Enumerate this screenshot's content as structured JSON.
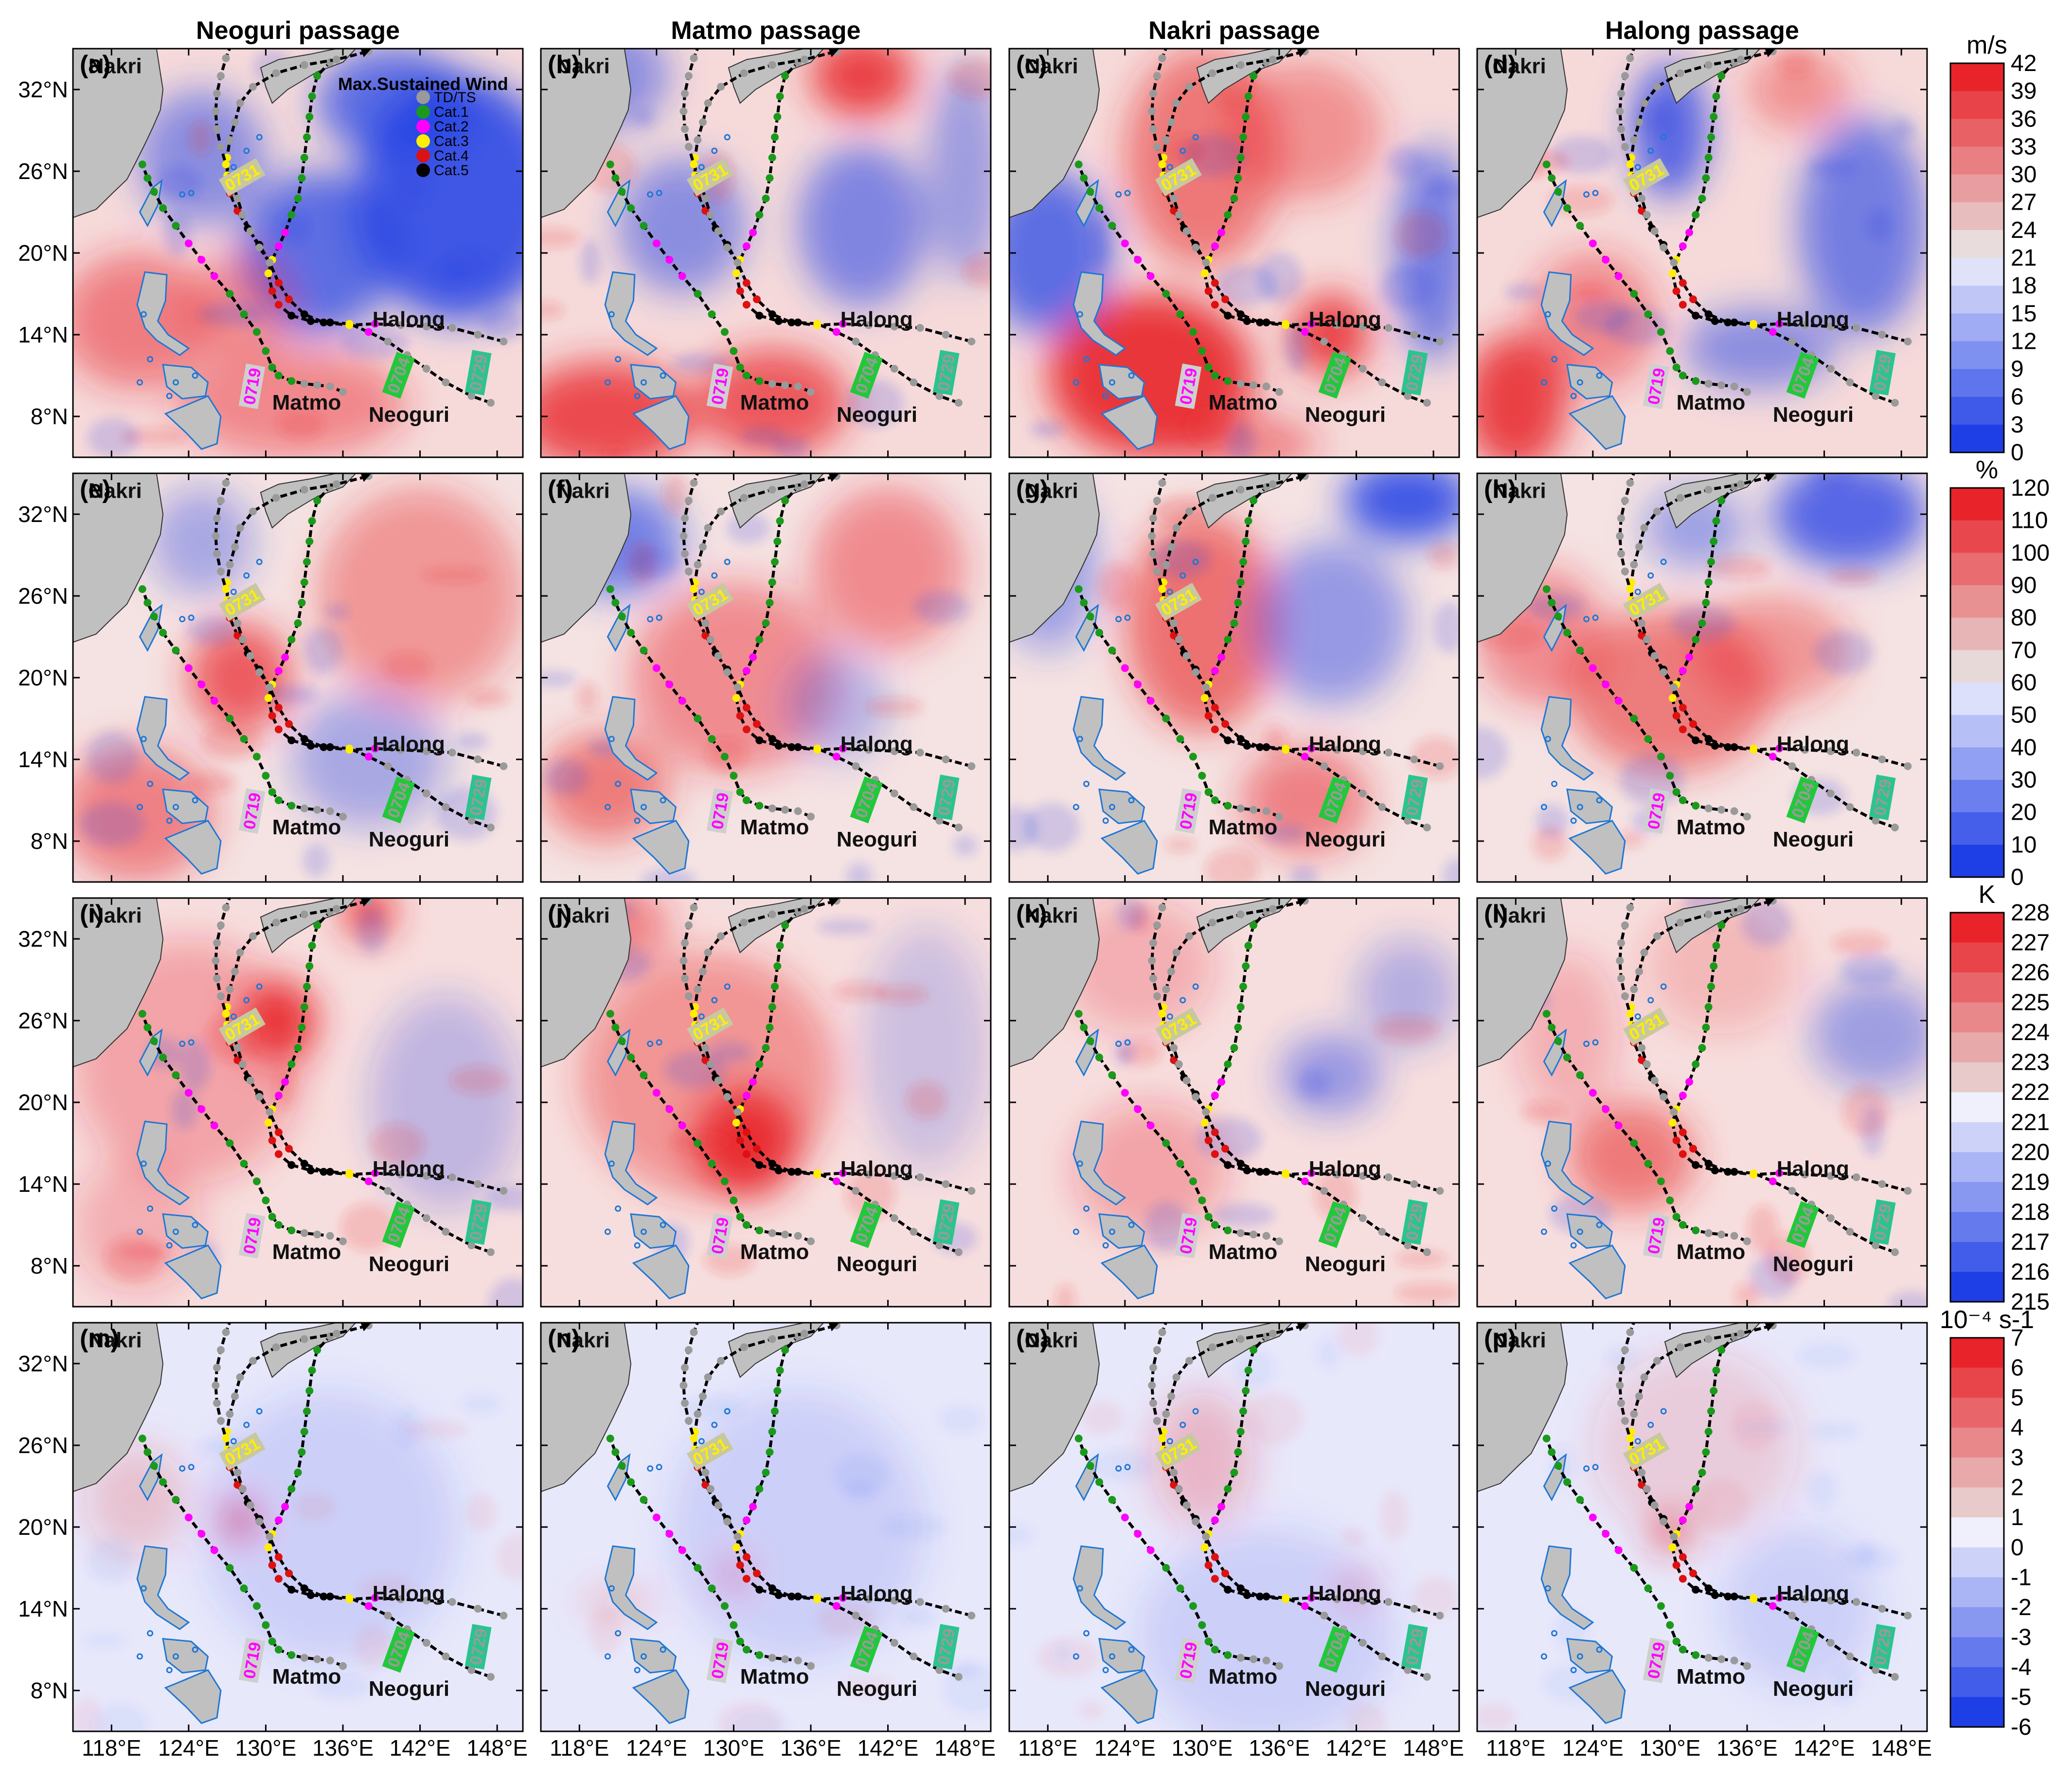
{
  "columns": [
    "Neoguri passage",
    "Matmo passage",
    "Nakri passage",
    "Halong passage"
  ],
  "panel_labels": [
    "(a)",
    "(b)",
    "(c)",
    "(d)",
    "(e)",
    "(f)",
    "(g)",
    "(h)",
    "(i)",
    "(j)",
    "(k)",
    "(l)",
    "(m)",
    "(n)",
    "(o)",
    "(p)"
  ],
  "lon_ticks": [
    "118°E",
    "124°E",
    "130°E",
    "136°E",
    "142°E",
    "148°E"
  ],
  "lat_ticks": [
    "32°N",
    "26°N",
    "20°N",
    "14°N",
    "8°N"
  ],
  "lon_range": [
    115,
    150
  ],
  "lat_range": [
    5,
    35
  ],
  "typhoon_names": {
    "nakri": "Nakri",
    "halong": "Halong",
    "matmo": "Matmo",
    "neoguri": "Neoguri"
  },
  "typhoon_dates": {
    "matmo": "0719",
    "neoguri": "0704",
    "halong": "0729",
    "nakri": "0731"
  },
  "legend": {
    "title": "Max.Sustained Wind",
    "items": [
      {
        "label": "TD/TS",
        "color": "#9a9a9a"
      },
      {
        "label": "Cat.1",
        "color": "#1a9a1a"
      },
      {
        "label": "Cat.2",
        "color": "#ff00ff"
      },
      {
        "label": "Cat.3",
        "color": "#ffee00"
      },
      {
        "label": "Cat.4",
        "color": "#dd1111"
      },
      {
        "label": "Cat.5",
        "color": "#000000"
      }
    ]
  },
  "colorbars": [
    {
      "unit": "m/s",
      "ticks": [
        "42",
        "39",
        "36",
        "33",
        "30",
        "27",
        "24",
        "21",
        "18",
        "15",
        "12",
        "9",
        "6",
        "3",
        "0"
      ]
    },
    {
      "unit": "%",
      "ticks": [
        "120",
        "110",
        "100",
        "90",
        "80",
        "70",
        "60",
        "50",
        "40",
        "30",
        "20",
        "10",
        "0"
      ]
    },
    {
      "unit": "K",
      "ticks": [
        "228",
        "227",
        "226",
        "225",
        "224",
        "223",
        "222",
        "221",
        "220",
        "219",
        "218",
        "217",
        "216",
        "215"
      ]
    },
    {
      "unit": "10⁻⁴ s-1",
      "ticks": [
        "7",
        "6",
        "5",
        "4",
        "3",
        "2",
        "1",
        "0",
        "-1",
        "-2",
        "-3",
        "-4",
        "-5",
        "-6"
      ]
    }
  ],
  "colors": {
    "land": "#c0c0c0",
    "island_outline": "#1f77d4",
    "red": "#e8242a",
    "blue": "#1f3fe6"
  }
}
